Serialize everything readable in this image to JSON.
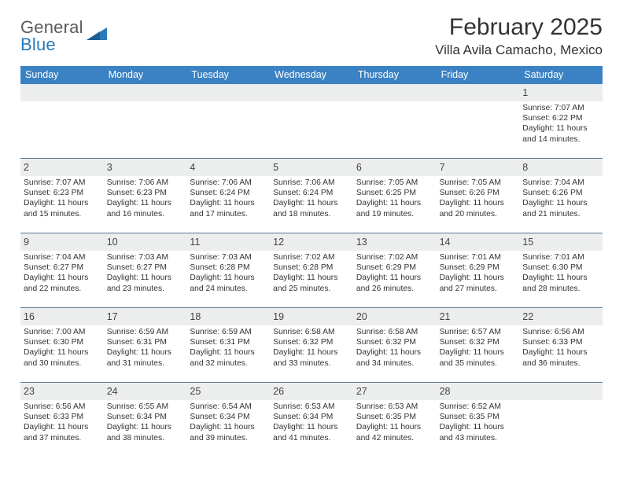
{
  "logo": {
    "word1": "General",
    "word2": "Blue"
  },
  "title": "February 2025",
  "location": "Villa Avila Camacho, Mexico",
  "header_bg": "#3b82c4",
  "week_border": "#5a7a99",
  "daynum_bg": "#eceded",
  "weekdays": [
    "Sunday",
    "Monday",
    "Tuesday",
    "Wednesday",
    "Thursday",
    "Friday",
    "Saturday"
  ],
  "weeks": [
    {
      "days": [
        {
          "n": "",
          "sunrise": "",
          "sunset": "",
          "daylight": ""
        },
        {
          "n": "",
          "sunrise": "",
          "sunset": "",
          "daylight": ""
        },
        {
          "n": "",
          "sunrise": "",
          "sunset": "",
          "daylight": ""
        },
        {
          "n": "",
          "sunrise": "",
          "sunset": "",
          "daylight": ""
        },
        {
          "n": "",
          "sunrise": "",
          "sunset": "",
          "daylight": ""
        },
        {
          "n": "",
          "sunrise": "",
          "sunset": "",
          "daylight": ""
        },
        {
          "n": "1",
          "sunrise": "Sunrise: 7:07 AM",
          "sunset": "Sunset: 6:22 PM",
          "daylight": "Daylight: 11 hours and 14 minutes."
        }
      ]
    },
    {
      "days": [
        {
          "n": "2",
          "sunrise": "Sunrise: 7:07 AM",
          "sunset": "Sunset: 6:23 PM",
          "daylight": "Daylight: 11 hours and 15 minutes."
        },
        {
          "n": "3",
          "sunrise": "Sunrise: 7:06 AM",
          "sunset": "Sunset: 6:23 PM",
          "daylight": "Daylight: 11 hours and 16 minutes."
        },
        {
          "n": "4",
          "sunrise": "Sunrise: 7:06 AM",
          "sunset": "Sunset: 6:24 PM",
          "daylight": "Daylight: 11 hours and 17 minutes."
        },
        {
          "n": "5",
          "sunrise": "Sunrise: 7:06 AM",
          "sunset": "Sunset: 6:24 PM",
          "daylight": "Daylight: 11 hours and 18 minutes."
        },
        {
          "n": "6",
          "sunrise": "Sunrise: 7:05 AM",
          "sunset": "Sunset: 6:25 PM",
          "daylight": "Daylight: 11 hours and 19 minutes."
        },
        {
          "n": "7",
          "sunrise": "Sunrise: 7:05 AM",
          "sunset": "Sunset: 6:26 PM",
          "daylight": "Daylight: 11 hours and 20 minutes."
        },
        {
          "n": "8",
          "sunrise": "Sunrise: 7:04 AM",
          "sunset": "Sunset: 6:26 PM",
          "daylight": "Daylight: 11 hours and 21 minutes."
        }
      ]
    },
    {
      "days": [
        {
          "n": "9",
          "sunrise": "Sunrise: 7:04 AM",
          "sunset": "Sunset: 6:27 PM",
          "daylight": "Daylight: 11 hours and 22 minutes."
        },
        {
          "n": "10",
          "sunrise": "Sunrise: 7:03 AM",
          "sunset": "Sunset: 6:27 PM",
          "daylight": "Daylight: 11 hours and 23 minutes."
        },
        {
          "n": "11",
          "sunrise": "Sunrise: 7:03 AM",
          "sunset": "Sunset: 6:28 PM",
          "daylight": "Daylight: 11 hours and 24 minutes."
        },
        {
          "n": "12",
          "sunrise": "Sunrise: 7:02 AM",
          "sunset": "Sunset: 6:28 PM",
          "daylight": "Daylight: 11 hours and 25 minutes."
        },
        {
          "n": "13",
          "sunrise": "Sunrise: 7:02 AM",
          "sunset": "Sunset: 6:29 PM",
          "daylight": "Daylight: 11 hours and 26 minutes."
        },
        {
          "n": "14",
          "sunrise": "Sunrise: 7:01 AM",
          "sunset": "Sunset: 6:29 PM",
          "daylight": "Daylight: 11 hours and 27 minutes."
        },
        {
          "n": "15",
          "sunrise": "Sunrise: 7:01 AM",
          "sunset": "Sunset: 6:30 PM",
          "daylight": "Daylight: 11 hours and 28 minutes."
        }
      ]
    },
    {
      "days": [
        {
          "n": "16",
          "sunrise": "Sunrise: 7:00 AM",
          "sunset": "Sunset: 6:30 PM",
          "daylight": "Daylight: 11 hours and 30 minutes."
        },
        {
          "n": "17",
          "sunrise": "Sunrise: 6:59 AM",
          "sunset": "Sunset: 6:31 PM",
          "daylight": "Daylight: 11 hours and 31 minutes."
        },
        {
          "n": "18",
          "sunrise": "Sunrise: 6:59 AM",
          "sunset": "Sunset: 6:31 PM",
          "daylight": "Daylight: 11 hours and 32 minutes."
        },
        {
          "n": "19",
          "sunrise": "Sunrise: 6:58 AM",
          "sunset": "Sunset: 6:32 PM",
          "daylight": "Daylight: 11 hours and 33 minutes."
        },
        {
          "n": "20",
          "sunrise": "Sunrise: 6:58 AM",
          "sunset": "Sunset: 6:32 PM",
          "daylight": "Daylight: 11 hours and 34 minutes."
        },
        {
          "n": "21",
          "sunrise": "Sunrise: 6:57 AM",
          "sunset": "Sunset: 6:32 PM",
          "daylight": "Daylight: 11 hours and 35 minutes."
        },
        {
          "n": "22",
          "sunrise": "Sunrise: 6:56 AM",
          "sunset": "Sunset: 6:33 PM",
          "daylight": "Daylight: 11 hours and 36 minutes."
        }
      ]
    },
    {
      "days": [
        {
          "n": "23",
          "sunrise": "Sunrise: 6:56 AM",
          "sunset": "Sunset: 6:33 PM",
          "daylight": "Daylight: 11 hours and 37 minutes."
        },
        {
          "n": "24",
          "sunrise": "Sunrise: 6:55 AM",
          "sunset": "Sunset: 6:34 PM",
          "daylight": "Daylight: 11 hours and 38 minutes."
        },
        {
          "n": "25",
          "sunrise": "Sunrise: 6:54 AM",
          "sunset": "Sunset: 6:34 PM",
          "daylight": "Daylight: 11 hours and 39 minutes."
        },
        {
          "n": "26",
          "sunrise": "Sunrise: 6:53 AM",
          "sunset": "Sunset: 6:34 PM",
          "daylight": "Daylight: 11 hours and 41 minutes."
        },
        {
          "n": "27",
          "sunrise": "Sunrise: 6:53 AM",
          "sunset": "Sunset: 6:35 PM",
          "daylight": "Daylight: 11 hours and 42 minutes."
        },
        {
          "n": "28",
          "sunrise": "Sunrise: 6:52 AM",
          "sunset": "Sunset: 6:35 PM",
          "daylight": "Daylight: 11 hours and 43 minutes."
        },
        {
          "n": "",
          "sunrise": "",
          "sunset": "",
          "daylight": ""
        }
      ]
    }
  ]
}
